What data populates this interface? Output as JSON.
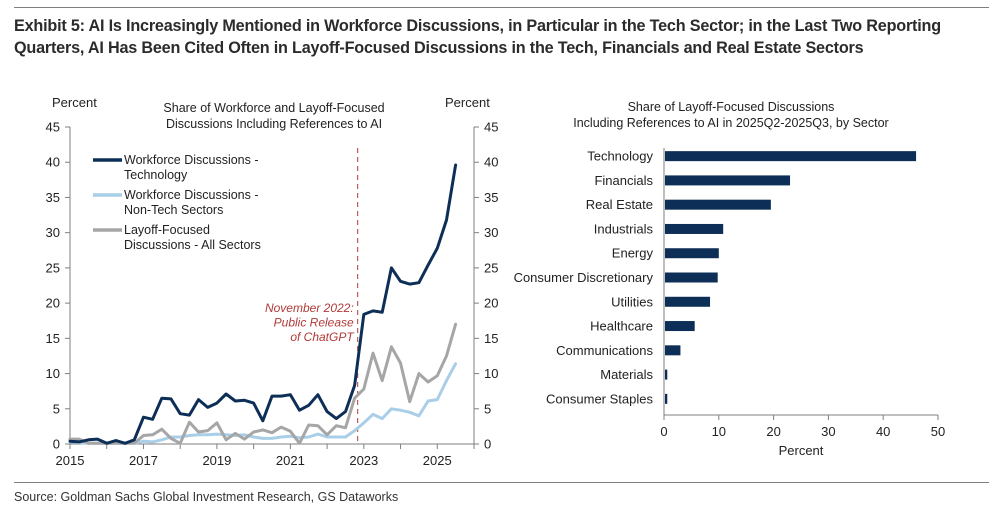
{
  "title": "Exhibit 5: AI Is Increasingly Mentioned in Workforce Discussions, in Particular in the Tech Sector; in the Last Two Reporting Quarters, AI Has Been Cited Often in Layoff-Focused Discussions in the Tech, Financials and Real Estate Sectors",
  "source": "Source: Goldman Sachs Global Investment Research, GS Dataworks",
  "colors": {
    "tech": "#0d2f57",
    "nontech": "#a9cfe8",
    "layoff": "#a6a6a6",
    "bar": "#0d2f57",
    "annotation": "#b03a3a",
    "axis": "#7f7f7f"
  },
  "chart_data": [
    {
      "type": "line",
      "title": "Share of Workforce and Layoff-Focused Discussions Including References to AI",
      "title_lines": [
        "Share of Workforce and Layoff-Focused",
        "Discussions Including References to AI"
      ],
      "ylabel_left": "Percent",
      "ylabel_right": "Percent",
      "ylim": [
        0,
        45
      ],
      "yticks": [
        0,
        5,
        10,
        15,
        20,
        25,
        30,
        35,
        40,
        45
      ],
      "xlim": [
        2015,
        2026
      ],
      "xticks": [
        "2015",
        "2017",
        "2019",
        "2021",
        "2023",
        "2025"
      ],
      "x_frequency": "quarterly",
      "x": [
        "2015Q1",
        "2015Q2",
        "2015Q3",
        "2015Q4",
        "2016Q1",
        "2016Q2",
        "2016Q3",
        "2016Q4",
        "2017Q1",
        "2017Q2",
        "2017Q3",
        "2017Q4",
        "2018Q1",
        "2018Q2",
        "2018Q3",
        "2018Q4",
        "2019Q1",
        "2019Q2",
        "2019Q3",
        "2019Q4",
        "2020Q1",
        "2020Q2",
        "2020Q3",
        "2020Q4",
        "2021Q1",
        "2021Q2",
        "2021Q3",
        "2021Q4",
        "2022Q1",
        "2022Q2",
        "2022Q3",
        "2022Q4",
        "2023Q1",
        "2023Q2",
        "2023Q3",
        "2023Q4",
        "2024Q1",
        "2024Q2",
        "2024Q3",
        "2024Q4",
        "2025Q1",
        "2025Q2",
        "2025Q3"
      ],
      "series": [
        {
          "name": "Workforce Discussions - Technology",
          "legend": [
            "Workforce Discussions -",
            "Technology"
          ],
          "color_key": "tech",
          "values": [
            0.4,
            0.3,
            0.6,
            0.7,
            0.1,
            0.5,
            0.1,
            0.6,
            3.8,
            3.5,
            6.5,
            6.4,
            4.3,
            4.1,
            6.3,
            5.2,
            5.8,
            7.1,
            6.1,
            6.2,
            5.8,
            3.3,
            6.8,
            6.8,
            7.0,
            4.8,
            5.5,
            7.0,
            4.6,
            3.6,
            4.6,
            8.3,
            18.4,
            18.9,
            18.7,
            25.0,
            23.1,
            22.7,
            22.9,
            25.4,
            27.8,
            31.8,
            39.6
          ]
        },
        {
          "name": "Workforce Discussions - Non-Tech Sectors",
          "legend": [
            "Workforce Discussions -",
            "Non-Tech Sectors"
          ],
          "color_key": "nontech",
          "values": [
            0.3,
            0.2,
            0.1,
            0.1,
            0.1,
            0.1,
            0.1,
            0.1,
            0.4,
            0.3,
            0.6,
            1.0,
            1.0,
            1.2,
            1.3,
            1.3,
            1.4,
            1.3,
            1.2,
            1.3,
            1.0,
            0.8,
            0.8,
            1.0,
            1.1,
            0.9,
            1.0,
            1.4,
            1.0,
            1.0,
            1.0,
            1.9,
            3.0,
            4.2,
            3.6,
            5.0,
            4.8,
            4.5,
            4.0,
            6.1,
            6.3,
            9.0,
            11.4
          ]
        },
        {
          "name": "Layoff-Focused Discussions - All Sectors",
          "legend": [
            "Layoff-Focused",
            "Discussions - All Sectors"
          ],
          "color_key": "layoff",
          "values": [
            0.7,
            0.7,
            0.1,
            0.1,
            0.1,
            0.1,
            0.1,
            0.1,
            1.2,
            1.3,
            2.1,
            0.8,
            0.1,
            3.1,
            1.7,
            1.9,
            3.0,
            0.6,
            1.5,
            0.7,
            1.7,
            2.0,
            1.6,
            2.4,
            1.8,
            0.1,
            2.7,
            2.6,
            1.3,
            2.6,
            2.3,
            6.5,
            7.8,
            12.9,
            9.0,
            13.8,
            11.5,
            6.0,
            10.0,
            8.8,
            9.7,
            12.5,
            17.0
          ]
        }
      ],
      "annotation": {
        "x": "2022Q4",
        "text_lines": [
          "November 2022:",
          "Public Release",
          "of ChatGPT"
        ],
        "style": "dashed-vertical-line"
      },
      "legend_position": "top-left",
      "grid": false
    },
    {
      "type": "bar",
      "orientation": "horizontal",
      "title": "Share of Layoff-Focused Discussions Including References to AI in 2025Q2-2025Q3, by Sector",
      "title_lines": [
        "Share of Layoff-Focused Discussions",
        "Including References to AI in 2025Q2-2025Q3, by Sector"
      ],
      "categories": [
        "Technology",
        "Financials",
        "Real Estate",
        "Industrials",
        "Energy",
        "Consumer Discretionary",
        "Utilities",
        "Healthcare",
        "Communications",
        "Materials",
        "Consumer Staples"
      ],
      "values": [
        46.0,
        23.0,
        19.5,
        10.8,
        10.0,
        9.8,
        8.4,
        5.6,
        3.0,
        0.6,
        0.6
      ],
      "xlabel": "Percent",
      "xlim": [
        0,
        50
      ],
      "xticks": [
        0,
        10,
        20,
        30,
        40,
        50
      ],
      "grid": false
    }
  ]
}
